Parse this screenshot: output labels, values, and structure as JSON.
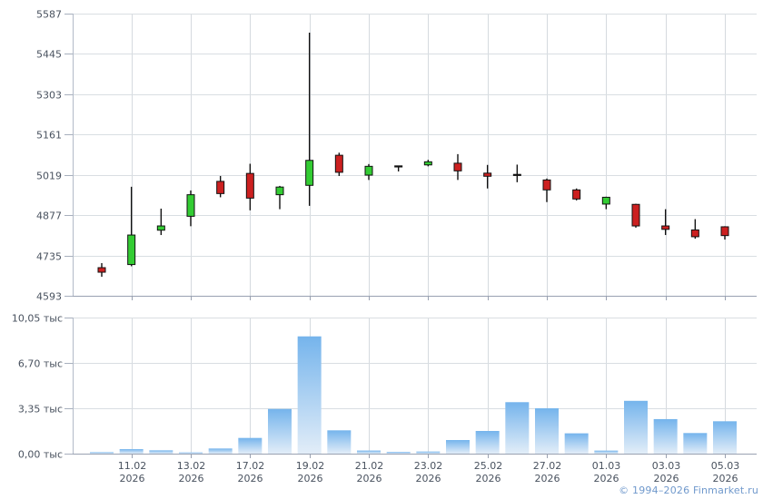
{
  "footer": {
    "copyright": "© 1994–2026 Finmarket.ru"
  },
  "colors": {
    "background": "#ffffff",
    "up": "#33cc33",
    "down": "#cc2020",
    "candle_outline": "#111111",
    "doji": "#111111",
    "grid": "#d9dee2",
    "grid_vertical": "#d5dadf",
    "axis_border": "#b2bac8",
    "axis_bottom": "#99a1b1",
    "tick_stub": "#a7afbd",
    "label_text": "#49525f",
    "volume_bar_top": "#75b4ec",
    "volume_bar_bottom": "#e2edf8",
    "footer_link": "#7099cc"
  },
  "chart_data": [
    {
      "type": "candlestick",
      "title": "",
      "xlabel": "",
      "ylabel": "",
      "grid": true,
      "legend": "none",
      "ylim": [
        4593,
        5587
      ],
      "yticks": [
        {
          "label": "5587",
          "value": 5587
        },
        {
          "label": "5445",
          "value": 5445
        },
        {
          "label": "5303",
          "value": 5303
        },
        {
          "label": "5161",
          "value": 5161
        },
        {
          "label": "5019",
          "value": 5019
        },
        {
          "label": "4877",
          "value": 4877
        },
        {
          "label": "4735",
          "value": 4735
        },
        {
          "label": "4593",
          "value": 4593
        }
      ],
      "x_ticks": [
        {
          "candle_index": 1,
          "date": "11.02",
          "year": "2026"
        },
        {
          "candle_index": 3,
          "date": "13.02",
          "year": "2026"
        },
        {
          "candle_index": 5,
          "date": "17.02",
          "year": "2026"
        },
        {
          "candle_index": 7,
          "date": "19.02",
          "year": "2026"
        },
        {
          "candle_index": 9,
          "date": "21.02",
          "year": "2026"
        },
        {
          "candle_index": 11,
          "date": "23.02",
          "year": "2026"
        },
        {
          "candle_index": 13,
          "date": "25.02",
          "year": "2026"
        },
        {
          "candle_index": 15,
          "date": "27.02",
          "year": "2026"
        },
        {
          "candle_index": 17,
          "date": "01.03",
          "year": "2026"
        },
        {
          "candle_index": 19,
          "date": "03.03",
          "year": "2026"
        },
        {
          "candle_index": 21,
          "date": "05.03",
          "year": "2026"
        }
      ],
      "candles": [
        {
          "open": 4692,
          "high": 4708,
          "low": 4660,
          "close": 4676,
          "volume": 110
        },
        {
          "open": 4703,
          "high": 4977,
          "low": 4697,
          "close": 4807,
          "volume": 335
        },
        {
          "open": 4824,
          "high": 4900,
          "low": 4807,
          "close": 4839,
          "volume": 245
        },
        {
          "open": 4873,
          "high": 4964,
          "low": 4838,
          "close": 4949,
          "volume": 90
        },
        {
          "open": 4996,
          "high": 5015,
          "low": 4940,
          "close": 4953,
          "volume": 380
        },
        {
          "open": 5024,
          "high": 5058,
          "low": 4894,
          "close": 4937,
          "volume": 1160
        },
        {
          "open": 4949,
          "high": 4980,
          "low": 4898,
          "close": 4976,
          "volume": 3300
        },
        {
          "open": 4982,
          "high": 5520,
          "low": 4910,
          "close": 5070,
          "volume": 8660
        },
        {
          "open": 5088,
          "high": 5097,
          "low": 5015,
          "close": 5028,
          "volume": 1720
        },
        {
          "open": 5018,
          "high": 5057,
          "low": 5001,
          "close": 5049,
          "volume": 230
        },
        {
          "open": 5049,
          "high": 5049,
          "low": 5031,
          "close": 5049,
          "volume": 130
        },
        {
          "open": 5054,
          "high": 5072,
          "low": 5049,
          "close": 5065,
          "volume": 155
        },
        {
          "open": 5060,
          "high": 5092,
          "low": 5001,
          "close": 5033,
          "volume": 1005
        },
        {
          "open": 5025,
          "high": 5054,
          "low": 4971,
          "close": 5014,
          "volume": 1675
        },
        {
          "open": 5019,
          "high": 5055,
          "low": 4993,
          "close": 5019,
          "volume": 3800
        },
        {
          "open": 5001,
          "high": 5006,
          "low": 4923,
          "close": 4966,
          "volume": 3350
        },
        {
          "open": 4966,
          "high": 4971,
          "low": 4929,
          "close": 4934,
          "volume": 1500
        },
        {
          "open": 4916,
          "high": 4942,
          "low": 4898,
          "close": 4940,
          "volume": 225
        },
        {
          "open": 4915,
          "high": 4917,
          "low": 4833,
          "close": 4839,
          "volume": 3900
        },
        {
          "open": 4839,
          "high": 4898,
          "low": 4807,
          "close": 4827,
          "volume": 2550
        },
        {
          "open": 4825,
          "high": 4863,
          "low": 4794,
          "close": 4801,
          "volume": 1520
        },
        {
          "open": 4836,
          "high": 4838,
          "low": 4791,
          "close": 4805,
          "volume": 2390
        }
      ]
    },
    {
      "type": "bar",
      "title": "",
      "xlabel": "",
      "ylabel": "",
      "grid": true,
      "legend": "none",
      "unit": "тыс",
      "ylim": [
        0,
        10050
      ],
      "yticks": [
        {
          "label": "10,05 тыс",
          "value": 10050
        },
        {
          "label": "6,70 тыс",
          "value": 6700
        },
        {
          "label": "3,35 тыс",
          "value": 3350
        },
        {
          "label": "0,00 тыс",
          "value": 0
        }
      ],
      "values": [
        110,
        335,
        245,
        90,
        380,
        1160,
        3300,
        8660,
        1720,
        230,
        130,
        155,
        1005,
        1675,
        3800,
        3350,
        1500,
        225,
        3900,
        2550,
        1520,
        2390
      ]
    }
  ]
}
